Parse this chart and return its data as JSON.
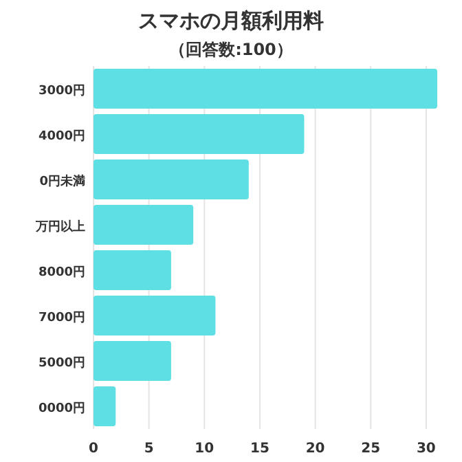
{
  "chart_data": {
    "type": "bar",
    "orientation": "horizontal",
    "title": "スマホの月額利用料",
    "subtitle": "（回答数:100）",
    "categories": [
      "3000円",
      "4000円",
      "0円未満",
      "万円以上",
      "8000円",
      "7000円",
      "5000円",
      "0000円"
    ],
    "values": [
      31,
      19,
      14,
      9,
      7,
      11,
      7,
      2
    ],
    "color": "#5ddfe3",
    "xlim": [
      0,
      31
    ],
    "xticks": [
      0,
      5,
      10,
      15,
      20,
      25,
      30
    ],
    "grid": "x"
  }
}
